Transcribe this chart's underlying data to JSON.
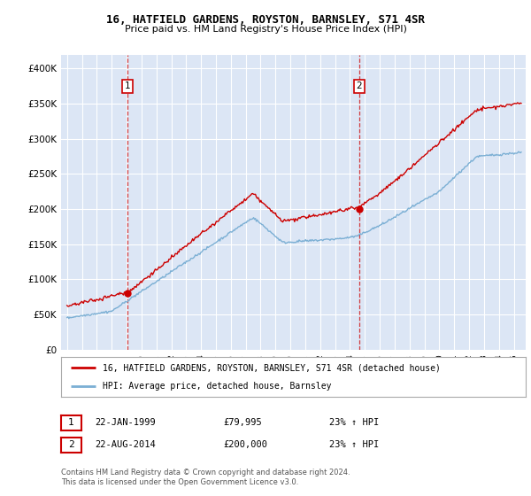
{
  "title": "16, HATFIELD GARDENS, ROYSTON, BARNSLEY, S71 4SR",
  "subtitle": "Price paid vs. HM Land Registry's House Price Index (HPI)",
  "bg_color": "#dce6f5",
  "hpi_color": "#7bafd4",
  "price_color": "#cc0000",
  "ylim": [
    0,
    420000
  ],
  "yticks": [
    0,
    50000,
    100000,
    150000,
    200000,
    250000,
    300000,
    350000,
    400000
  ],
  "ytick_labels": [
    "£0",
    "£50K",
    "£100K",
    "£150K",
    "£200K",
    "£250K",
    "£300K",
    "£350K",
    "£400K"
  ],
  "sale1_date": 1999.07,
  "sale1_price": 79995,
  "sale1_label": "1",
  "sale2_date": 2014.63,
  "sale2_price": 200000,
  "sale2_label": "2",
  "legend_line1": "16, HATFIELD GARDENS, ROYSTON, BARNSLEY, S71 4SR (detached house)",
  "legend_line2": "HPI: Average price, detached house, Barnsley",
  "table_row1": [
    "1",
    "22-JAN-1999",
    "£79,995",
    "23% ↑ HPI"
  ],
  "table_row2": [
    "2",
    "22-AUG-2014",
    "£200,000",
    "23% ↑ HPI"
  ],
  "footnote": "Contains HM Land Registry data © Crown copyright and database right 2024.\nThis data is licensed under the Open Government Licence v3.0.",
  "xstart": 1994.6,
  "xend": 2025.8
}
